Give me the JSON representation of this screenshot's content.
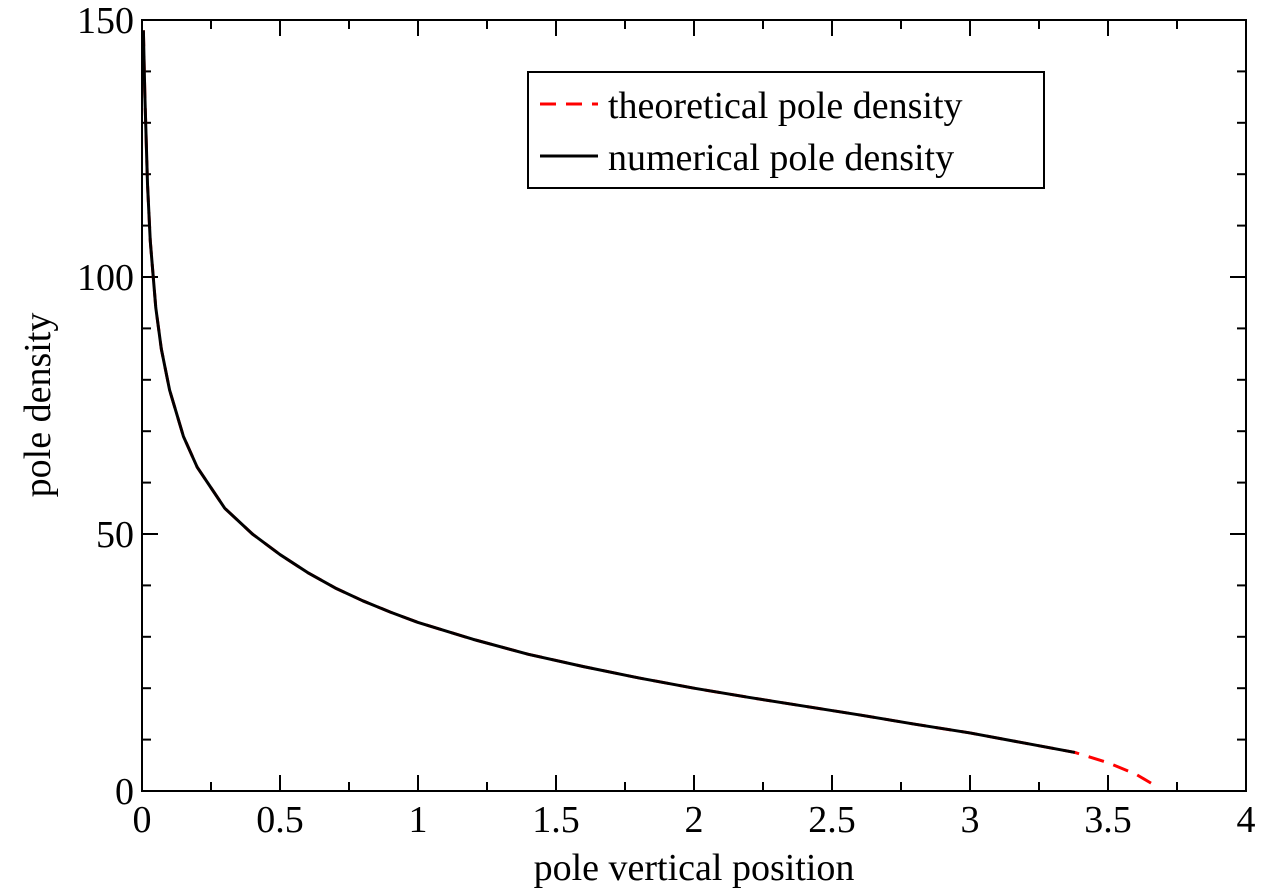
{
  "chart_data": {
    "type": "line",
    "xlabel": "pole vertical position",
    "ylabel": "pole density",
    "xlim": [
      0,
      4
    ],
    "ylim": [
      0,
      150
    ],
    "x_ticks": [
      "0",
      "0.5",
      "1",
      "1.5",
      "2",
      "2.5",
      "3",
      "3.5",
      "4"
    ],
    "y_ticks": [
      "0",
      "50",
      "100",
      "150"
    ],
    "grid": false,
    "legend": "top-right",
    "series": [
      {
        "name": "theoretical pole density",
        "color": "#ff0000",
        "style": "dashed",
        "x": [
          0.005,
          0.01,
          0.02,
          0.03,
          0.05,
          0.07,
          0.1,
          0.15,
          0.2,
          0.25,
          0.3,
          0.4,
          0.5,
          0.6,
          0.7,
          0.8,
          0.9,
          1.0,
          1.2,
          1.4,
          1.6,
          1.8,
          2.0,
          2.2,
          2.4,
          2.6,
          2.8,
          3.0,
          3.2,
          3.38,
          3.5,
          3.6,
          3.66
        ],
        "y": [
          148,
          136,
          118,
          107,
          94,
          86,
          78,
          69,
          63,
          59,
          55,
          50,
          46,
          42.5,
          39.5,
          37,
          34.8,
          32.8,
          29.5,
          26.6,
          24.2,
          22.0,
          20.0,
          18.2,
          16.5,
          14.8,
          13.0,
          11.3,
          9.3,
          7.5,
          5.5,
          3.3,
          1.4
        ]
      },
      {
        "name": "numerical pole density",
        "color": "#000000",
        "style": "solid",
        "x": [
          0.005,
          0.01,
          0.02,
          0.03,
          0.05,
          0.07,
          0.1,
          0.15,
          0.2,
          0.25,
          0.3,
          0.4,
          0.5,
          0.6,
          0.7,
          0.8,
          0.9,
          1.0,
          1.2,
          1.4,
          1.6,
          1.8,
          2.0,
          2.2,
          2.4,
          2.6,
          2.8,
          3.0,
          3.2,
          3.38
        ],
        "y": [
          148,
          136,
          118,
          107,
          94,
          86,
          78,
          69,
          63,
          59,
          55,
          50,
          46,
          42.5,
          39.5,
          37,
          34.8,
          32.8,
          29.5,
          26.6,
          24.2,
          22.0,
          20.0,
          18.2,
          16.5,
          14.8,
          13.0,
          11.3,
          9.3,
          7.5
        ]
      }
    ]
  }
}
